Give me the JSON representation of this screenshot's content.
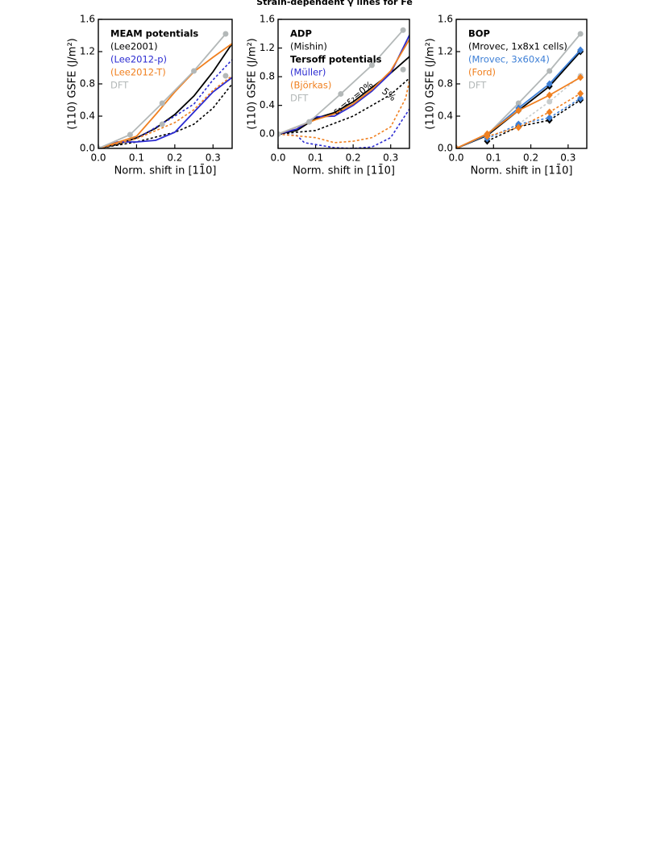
{
  "title": "Strain-dependent γ lines for Fe",
  "chart_data": [
    {
      "type": "line",
      "xlabel": "Norm. shift in [11̄0]",
      "ylabel": "(110) GSFE (J/m²)",
      "xlim": [
        0,
        0.35
      ],
      "xticks": [
        {
          "value": 0,
          "label": "0.0"
        },
        0.1,
        0.2,
        0.3
      ],
      "ylim": [
        0,
        1.6
      ],
      "yticks": [
        {
          "value": 0,
          "label": "0.0"
        },
        0.4,
        0.8,
        1.2,
        1.6
      ],
      "groups": [
        {
          "title": "MEAM potentials",
          "series": [
            {
              "name": "(Lee2001)",
              "color": "#000000",
              "x": [
                0,
                0.05,
                0.1,
                0.15,
                0.2,
                0.25,
                0.3,
                0.35
              ],
              "values": [
                0,
                0.05,
                0.13,
                0.25,
                0.42,
                0.65,
                0.95,
                1.3
              ]
            },
            {
              "color": "#000000",
              "dashed": true,
              "x": [
                0,
                0.1,
                0.2,
                0.25,
                0.3,
                0.35
              ],
              "values": [
                0,
                0.08,
                0.2,
                0.3,
                0.5,
                0.8
              ]
            },
            {
              "name": "(Lee2012-p)",
              "color": "#2b2bd1",
              "x": [
                0,
                0.05,
                0.1,
                0.15,
                0.2,
                0.25,
                0.3,
                0.35
              ],
              "values": [
                0,
                0.08,
                0.08,
                0.1,
                0.2,
                0.45,
                0.7,
                0.88
              ]
            },
            {
              "color": "#2b2bd1",
              "dashed": true,
              "x": [
                0,
                0.1,
                0.2,
                0.25,
                0.3,
                0.35
              ],
              "values": [
                0,
                0.12,
                0.4,
                0.55,
                0.85,
                1.1
              ]
            },
            {
              "name": "(Lee2012-T)",
              "color": "#f08020",
              "x": [
                0,
                0.1,
                0.15,
                0.2,
                0.25,
                0.3,
                0.35
              ],
              "values": [
                0,
                0.15,
                0.42,
                0.7,
                0.95,
                1.13,
                1.3
              ]
            },
            {
              "color": "#f08020",
              "dashed": true,
              "x": [
                0,
                0.1,
                0.2,
                0.25,
                0.3,
                0.35
              ],
              "values": [
                0,
                0.12,
                0.32,
                0.48,
                0.72,
                0.9
              ]
            }
          ]
        },
        {
          "series": [
            {
              "name": "DFT",
              "color": "#b3b8b8",
              "marker": "circle",
              "x": [
                0,
                0.083,
                0.167,
                0.25,
                0.333
              ],
              "values": [
                0,
                0.17,
                0.56,
                0.96,
                1.42
              ]
            },
            {
              "color": "#b3b8b8",
              "marker": "circle",
              "noline": true,
              "x": [
                0.167,
                0.333
              ],
              "values": [
                0.3,
                0.9
              ]
            }
          ]
        }
      ]
    },
    {
      "type": "line",
      "xlabel": "Norm. shift in [11̄0]",
      "ylabel": "(110) GSFE (J/m²)",
      "xlim": [
        0,
        0.35
      ],
      "xticks": [
        {
          "value": 0,
          "label": "0.0"
        },
        0.1,
        0.2,
        0.3
      ],
      "ylim": [
        -0.2,
        1.6
      ],
      "yticks": [
        {
          "value": 0,
          "label": "0.0"
        },
        0.4,
        0.8,
        1.2,
        1.6
      ],
      "annotations": [
        "ε₁=ε₂=0%",
        "5%"
      ],
      "groups": [
        {
          "title": "ADP",
          "series": [
            {
              "name": "(Mishin)",
              "color": "#000000",
              "x": [
                0,
                0.05,
                0.1,
                0.15,
                0.2,
                0.25,
                0.3,
                0.35
              ],
              "values": [
                0,
                0.05,
                0.22,
                0.3,
                0.45,
                0.65,
                0.85,
                1.08
              ]
            },
            {
              "color": "#000000",
              "dashed": true,
              "x": [
                0,
                0.1,
                0.2,
                0.3,
                0.35
              ],
              "values": [
                0,
                0.05,
                0.25,
                0.55,
                0.78
              ]
            }
          ]
        },
        {
          "title": "Tersoff potentials",
          "series": [
            {
              "name": "(Müller)",
              "color": "#2b2bd1",
              "x": [
                0,
                0.05,
                0.1,
                0.15,
                0.2,
                0.25,
                0.3,
                0.35
              ],
              "values": [
                0,
                0.07,
                0.24,
                0.25,
                0.4,
                0.6,
                0.85,
                1.38
              ]
            },
            {
              "color": "#2b2bd1",
              "dashed": true,
              "x": [
                0,
                0.05,
                0.07,
                0.15,
                0.2,
                0.25,
                0.3,
                0.35
              ],
              "values": [
                0,
                -0.02,
                -0.12,
                -0.19,
                -0.2,
                -0.18,
                -0.05,
                0.35
              ]
            },
            {
              "name": "(Björkas)",
              "color": "#f08020",
              "x": [
                0,
                0.1,
                0.15,
                0.2,
                0.25,
                0.3,
                0.35
              ],
              "values": [
                0,
                0.2,
                0.28,
                0.42,
                0.62,
                0.88,
                1.32
              ]
            },
            {
              "color": "#f08020",
              "dashed": true,
              "x": [
                0,
                0.1,
                0.15,
                0.2,
                0.25,
                0.3,
                0.34,
                0.35
              ],
              "values": [
                0,
                -0.05,
                -0.12,
                -0.1,
                -0.05,
                0.1,
                0.5,
                0.75
              ]
            }
          ]
        },
        {
          "series": [
            {
              "name": "DFT",
              "color": "#b3b8b8",
              "marker": "circle",
              "x": [
                0,
                0.083,
                0.167,
                0.25,
                0.333
              ],
              "values": [
                0,
                0.17,
                0.56,
                0.96,
                1.45
              ]
            },
            {
              "color": "#b3b8b8",
              "marker": "circle",
              "noline": true,
              "x": [
                0.333
              ],
              "values": [
                0.9
              ]
            }
          ]
        }
      ]
    },
    {
      "type": "line",
      "xlabel": "Norm. shift in [11̄0]",
      "ylabel": "(110) GSFE (J/m²)",
      "xlim": [
        0,
        0.35
      ],
      "xticks": [
        {
          "value": 0,
          "label": "0.0"
        },
        0.1,
        0.2,
        0.3
      ],
      "ylim": [
        0,
        1.6
      ],
      "yticks": [
        {
          "value": 0,
          "label": "0.0"
        },
        0.4,
        0.8,
        1.2,
        1.6
      ],
      "groups": [
        {
          "title": "BOP",
          "series": [
            {
              "color": "#b3b8b8",
              "marker": "circle",
              "x": [
                0,
                0.083,
                0.167,
                0.25,
                0.333
              ],
              "values": [
                0,
                0.17,
                0.56,
                0.96,
                1.42
              ]
            },
            {
              "color": "#c8cccc",
              "marker": "circle",
              "dashed": true,
              "x": [
                0.167,
                0.25,
                0.333
              ],
              "values": [
                0.3,
                0.58,
                0.9
              ]
            },
            {
              "name": "(Mrovec, 1x8x1 cells)",
              "color": "#000000",
              "marker": "diamond",
              "x": [
                0,
                0.083,
                0.167,
                0.25,
                0.333
              ],
              "values": [
                0,
                0.16,
                0.47,
                0.77,
                1.2
              ]
            },
            {
              "color": "#000000",
              "marker": "diamond",
              "dashed": true,
              "x": [
                0.083,
                0.167,
                0.25,
                0.333
              ],
              "values": [
                0.09,
                0.27,
                0.35,
                0.6
              ]
            },
            {
              "name": "(Mrovec, 3x60x4)",
              "color": "#3d7fd6",
              "marker": "diamond",
              "x": [
                0,
                0.083,
                0.167,
                0.25,
                0.333
              ],
              "values": [
                0,
                0.17,
                0.5,
                0.8,
                1.22
              ]
            },
            {
              "color": "#3d7fd6",
              "marker": "diamond",
              "dashed": true,
              "x": [
                0.083,
                0.167,
                0.25,
                0.333
              ],
              "values": [
                0.12,
                0.3,
                0.38,
                0.62
              ]
            },
            {
              "name": "(Ford)",
              "color": "#f08020",
              "marker": "diamond",
              "x": [
                0,
                0.083,
                0.167,
                0.25,
                0.333
              ],
              "values": [
                0,
                0.18,
                0.47,
                0.66,
                0.88
              ]
            },
            {
              "color": "#f08020",
              "marker": "diamond",
              "dashed": true,
              "x": [
                0.083,
                0.167,
                0.25,
                0.333
              ],
              "values": [
                0.15,
                0.26,
                0.45,
                0.68
              ]
            }
          ]
        },
        {
          "series": [
            {
              "name": "DFT",
              "color": "#b3b8b8",
              "noline": true,
              "x": [],
              "values": []
            }
          ]
        }
      ]
    }
  ]
}
